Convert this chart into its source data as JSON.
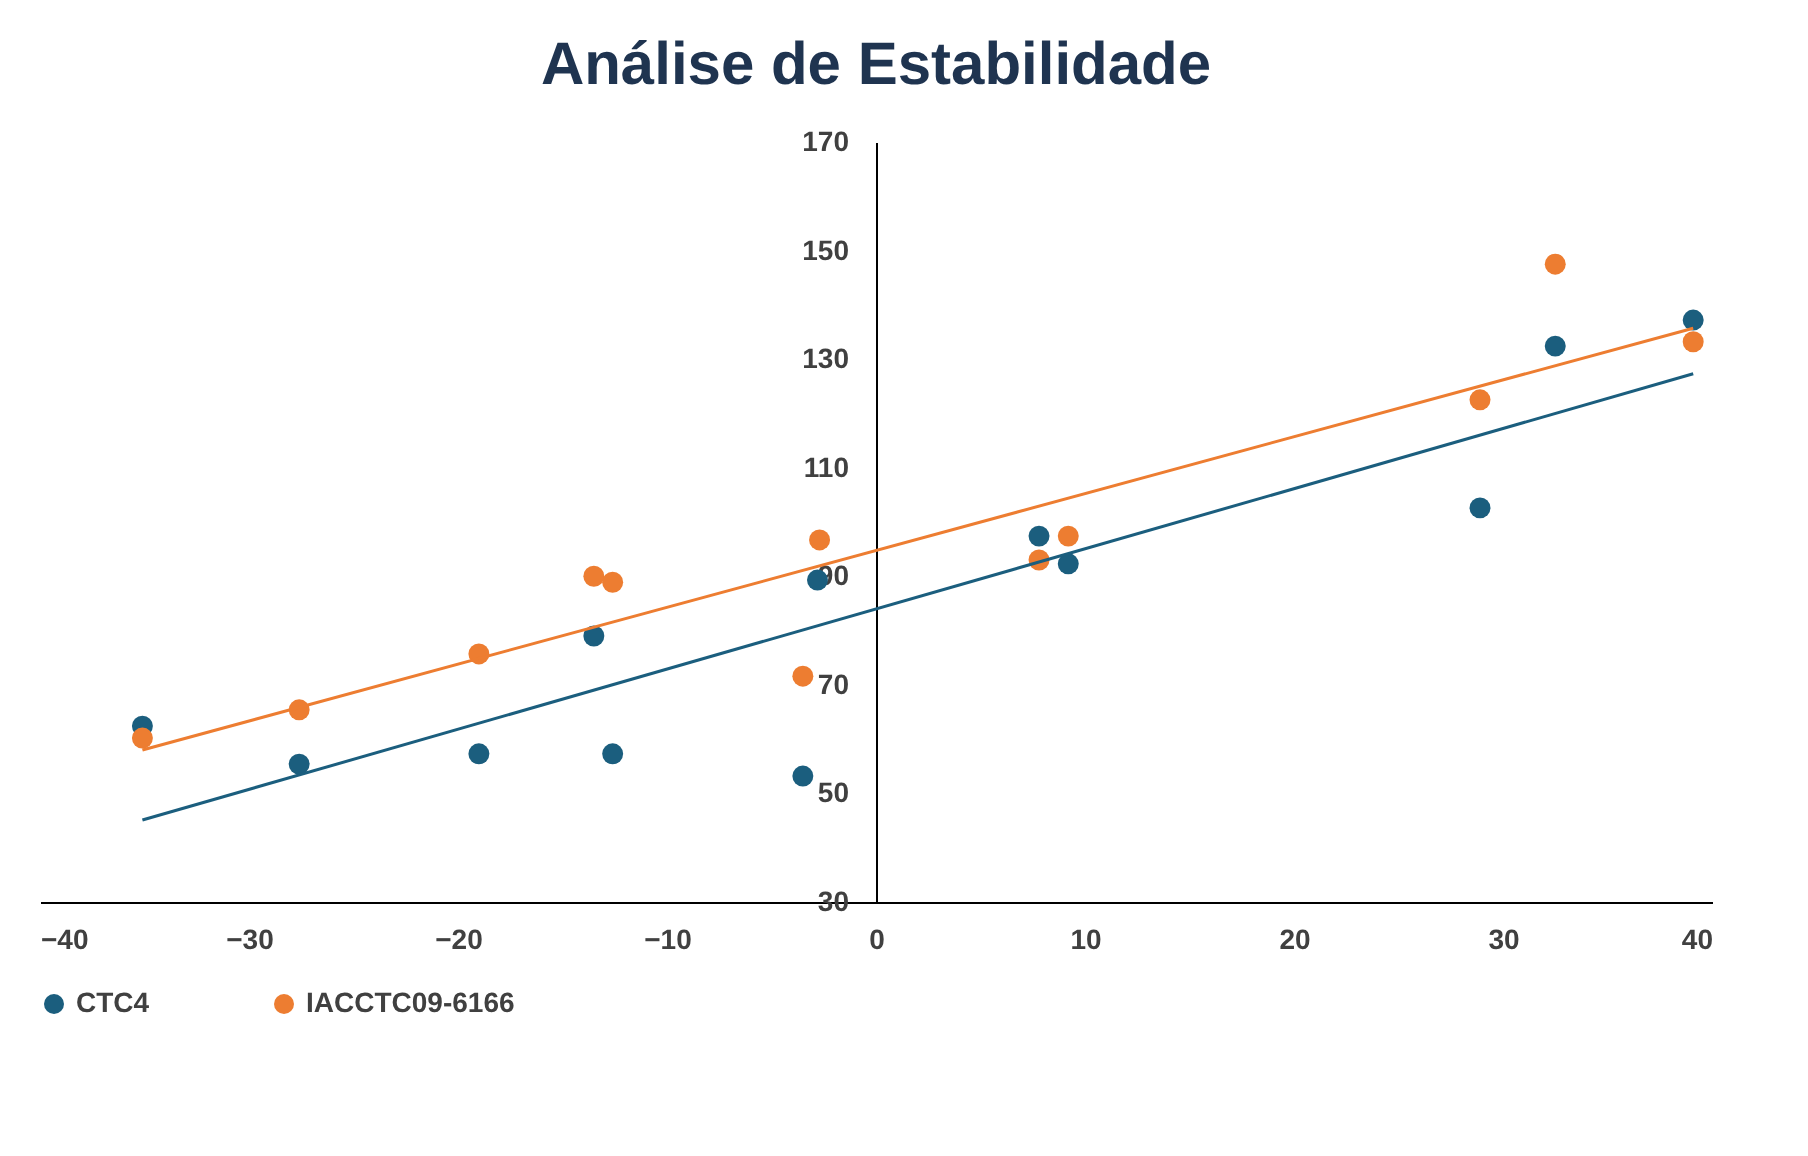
{
  "chart_data": {
    "type": "scatter",
    "title": "Análise de Estabilidade",
    "series": [
      {
        "name": "CTC4",
        "color": "#1b5e7e",
        "x": [
          -35.1,
          -27.6,
          -19.0,
          -13.5,
          -12.6,
          -3.5,
          -2.8,
          7.8,
          9.2,
          28.9,
          32.5,
          39.1
        ],
        "values": [
          62.4,
          55.4,
          57.3,
          79.0,
          57.3,
          53.2,
          89.3,
          97.4,
          92.3,
          102.6,
          132.4,
          137.2
        ]
      },
      {
        "name": "IACCTC09-6166",
        "color": "#ed7d31",
        "x": [
          -35.1,
          -27.6,
          -19.0,
          -13.5,
          -12.6,
          -3.5,
          -2.7,
          7.8,
          9.2,
          28.9,
          32.5,
          39.1
        ],
        "values": [
          60.2,
          65.4,
          75.7,
          90.0,
          88.9,
          71.6,
          96.7,
          93.0,
          97.4,
          122.5,
          147.5,
          133.2
        ]
      },
      {
        "type": "line",
        "marker": "none",
        "color": "#1b5e7e",
        "x": [
          -35.1,
          39.1
        ],
        "values": [
          45.1,
          127.3
        ]
      },
      {
        "type": "line",
        "marker": "none",
        "color": "#ed7d31",
        "x": [
          -35.1,
          39.1
        ],
        "values": [
          58.0,
          135.7
        ]
      }
    ],
    "xlim": [
      -40,
      40
    ],
    "xticks": [
      -40,
      -30,
      -20,
      -10,
      0,
      10,
      20,
      30,
      40
    ],
    "ylim": [
      30,
      170
    ],
    "yticks": [
      30,
      50,
      70,
      90,
      110,
      130,
      150,
      170
    ],
    "grid": false,
    "legend": "bottom",
    "marker": "circle",
    "line_style": "solid"
  }
}
